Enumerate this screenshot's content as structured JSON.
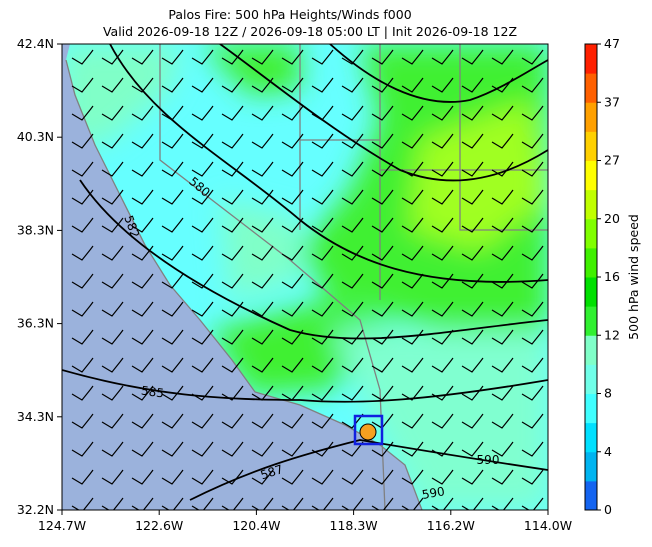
{
  "title": "Palos Fire: 500 hPa Heights/Winds f000",
  "subtitle": "Valid 2026-09-18 12Z / 2026-09-18 05:00 LT | Init 2026-09-18 12Z",
  "map": {
    "lat_labels": [
      "42.4N",
      "40.3N",
      "38.3N",
      "36.3N",
      "34.3N",
      "32.2N"
    ],
    "lon_labels": [
      "124.7W",
      "122.6W",
      "120.4W",
      "118.3W",
      "116.2W",
      "114.0W"
    ],
    "contour_labels": [
      "580",
      "582",
      "585",
      "587",
      "590",
      "590"
    ]
  },
  "colorbar": {
    "label": "500 hPa wind speed",
    "ticks": [
      0,
      4,
      8,
      12,
      16,
      20,
      27,
      37,
      47
    ],
    "colors": [
      "#1464f0",
      "#00b4f0",
      "#00e0ff",
      "#40ffff",
      "#70ffe8",
      "#80ffc8",
      "#30f030",
      "#00e000",
      "#40f000",
      "#80ff00",
      "#c0ff00",
      "#ffff00",
      "#ffd000",
      "#ffa000",
      "#ff6000",
      "#ff2000"
    ]
  }
}
